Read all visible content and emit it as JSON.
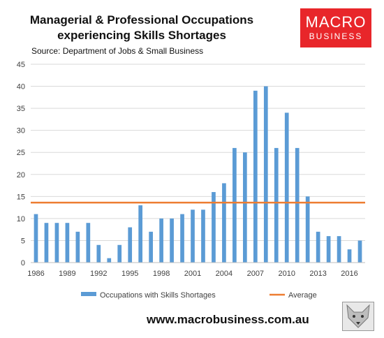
{
  "title_line1": "Managerial & Professional Occupations",
  "title_line2": "experiencing Skills Shortages",
  "source": "Source: Department of Jobs & Small Business",
  "logo": {
    "line1": "MACRO",
    "line2": "BUSINESS"
  },
  "footer_url": "www.macrobusiness.com.au",
  "colors": {
    "bars": "#5B9BD5",
    "average": "#ED7D31",
    "logo_bg": "#E8262A",
    "grid": "#D9D9D9"
  },
  "chart_data": {
    "type": "bar",
    "categories": [
      1986,
      1987,
      1988,
      1989,
      1990,
      1991,
      1992,
      1993,
      1994,
      1995,
      1996,
      1997,
      1998,
      1999,
      2000,
      2001,
      2002,
      2003,
      2004,
      2005,
      2006,
      2007,
      2008,
      2009,
      2010,
      2011,
      2012,
      2013,
      2014,
      2015,
      2016,
      2017
    ],
    "series": [
      {
        "name": "Occupations with Skills Shortages",
        "values": [
          11,
          9,
          9,
          9,
          7,
          9,
          4,
          1,
          4,
          8,
          13,
          7,
          10,
          10,
          11,
          12,
          12,
          16,
          18,
          26,
          25,
          39,
          40,
          26,
          34,
          26,
          15,
          7,
          6,
          6,
          3,
          5
        ]
      }
    ],
    "average": {
      "name": "Average",
      "value": 13.6
    },
    "x_tick_labels": [
      "1986",
      "1989",
      "1992",
      "1995",
      "1998",
      "2001",
      "2004",
      "2007",
      "2010",
      "2013",
      "2016"
    ],
    "y_ticks": [
      0,
      5,
      10,
      15,
      20,
      25,
      30,
      35,
      40,
      45
    ],
    "ylim": [
      0,
      45
    ],
    "grid": true,
    "legend_position": "bottom"
  }
}
